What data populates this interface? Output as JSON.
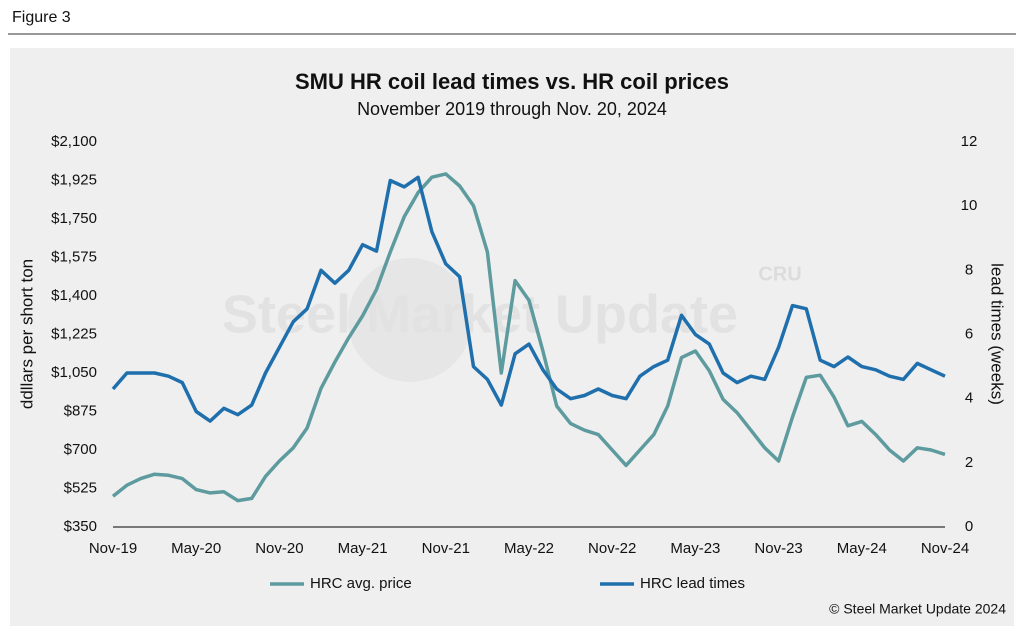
{
  "header": "Figure 3",
  "footer": "© Steel Market Update 2024",
  "chart_data": {
    "type": "line",
    "title": "SMU HR coil lead times vs. HR coil prices",
    "subtitle": "November 2019 through Nov. 20, 2024",
    "watermark": "Steel Market Update",
    "watermark_logo": "CRU",
    "y_label": "ddllars per short ton",
    "y2_label": "lead times (weeks)",
    "categories": [
      "Nov-19",
      null,
      null,
      null,
      null,
      null,
      "May-20",
      null,
      null,
      null,
      null,
      null,
      "Nov-20",
      null,
      null,
      null,
      null,
      null,
      "May-21",
      null,
      null,
      null,
      null,
      null,
      "Nov-21",
      null,
      null,
      null,
      null,
      null,
      "May-22",
      null,
      null,
      null,
      null,
      null,
      "Nov-22",
      null,
      null,
      null,
      null,
      null,
      "May-23",
      null,
      null,
      null,
      null,
      null,
      "Nov-23",
      null,
      null,
      null,
      null,
      null,
      "May-24",
      null,
      null,
      null,
      null,
      null,
      "Nov-24"
    ],
    "series": [
      {
        "name": "HRC avg. price",
        "color": "#5e9b9f",
        "axis": "y",
        "values": [
          490,
          540,
          570,
          590,
          585,
          570,
          520,
          505,
          510,
          470,
          480,
          580,
          650,
          710,
          800,
          980,
          1100,
          1210,
          1310,
          1430,
          1600,
          1760,
          1870,
          1940,
          1955,
          1900,
          1810,
          1600,
          1050,
          1470,
          1380,
          1150,
          900,
          820,
          790,
          770,
          700,
          630,
          700,
          770,
          900,
          1120,
          1150,
          1060,
          930,
          870,
          790,
          710,
          650,
          850,
          1030,
          1040,
          940,
          810,
          830,
          770,
          700,
          650,
          710,
          700,
          680
        ]
      },
      {
        "name": "HRC lead times",
        "color": "#1f6fad",
        "axis": "y2",
        "values": [
          4.3,
          4.8,
          4.8,
          4.8,
          4.7,
          4.5,
          3.6,
          3.3,
          3.7,
          3.5,
          3.8,
          4.8,
          5.6,
          6.4,
          6.8,
          8.0,
          7.6,
          8.0,
          8.8,
          8.6,
          10.8,
          10.6,
          10.9,
          9.2,
          8.2,
          7.8,
          5.0,
          4.6,
          3.8,
          5.4,
          5.7,
          4.9,
          4.3,
          4.0,
          4.1,
          4.3,
          4.1,
          4.0,
          4.7,
          5.0,
          5.2,
          6.6,
          6.0,
          5.7,
          4.8,
          4.5,
          4.7,
          4.6,
          5.6,
          6.9,
          6.8,
          5.2,
          5.0,
          5.3,
          5.0,
          4.9,
          4.7,
          4.6,
          5.1,
          4.9,
          4.7
        ]
      }
    ],
    "ylim": [
      350,
      2100
    ],
    "yticks": [
      {
        "value": 350,
        "label": "$350"
      },
      {
        "value": 525,
        "label": "$525"
      },
      {
        "value": 700,
        "label": "$700"
      },
      {
        "value": 875,
        "label": "$875"
      },
      {
        "value": 1050,
        "label": "$1,050"
      },
      {
        "value": 1225,
        "label": "$1,225"
      },
      {
        "value": 1400,
        "label": "$1,400"
      },
      {
        "value": 1575,
        "label": "$1,575"
      },
      {
        "value": 1750,
        "label": "$1,750"
      },
      {
        "value": 1925,
        "label": "$1,925"
      },
      {
        "value": 2100,
        "label": "$2,100"
      }
    ],
    "y2lim": [
      0,
      12
    ],
    "y2ticks": [
      0,
      2,
      4,
      6,
      8,
      10,
      12
    ],
    "grid": false,
    "legend": "bottom"
  }
}
